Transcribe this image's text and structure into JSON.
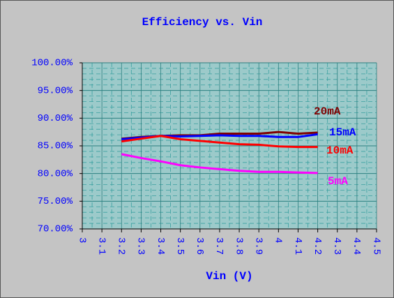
{
  "chart_data": {
    "type": "line",
    "title": "Efficiency vs. Vin",
    "x_label": "Vin (V)",
    "x": [
      3.2,
      3.3,
      3.4,
      3.5,
      3.6,
      3.7,
      3.8,
      3.9,
      4.0,
      4.1,
      4.2
    ],
    "series": [
      {
        "name": "20mA",
        "color": "#800000",
        "values": [
          86.3,
          86.6,
          86.8,
          86.9,
          86.9,
          87.2,
          87.2,
          87.2,
          87.5,
          87.2,
          87.4
        ]
      },
      {
        "name": "15mA",
        "color": "#0000ff",
        "values": [
          86.2,
          86.5,
          86.8,
          86.7,
          86.8,
          86.9,
          86.8,
          86.8,
          86.6,
          86.6,
          87.1
        ]
      },
      {
        "name": "10mA",
        "color": "#ff0000",
        "values": [
          85.8,
          86.3,
          86.8,
          86.2,
          85.9,
          85.6,
          85.3,
          85.2,
          84.9,
          84.8,
          84.8
        ]
      },
      {
        "name": "5mA",
        "color": "#ff00ff",
        "values": [
          83.5,
          82.8,
          82.2,
          81.5,
          81.1,
          80.8,
          80.5,
          80.3,
          80.3,
          80.2,
          80.1
        ]
      }
    ],
    "xlim": [
      3,
      4.5
    ],
    "xticks": [
      3,
      3.1,
      3.2,
      3.3,
      3.4,
      3.5,
      3.6,
      3.7,
      3.8,
      3.9,
      4,
      4.1,
      4.2,
      4.3,
      4.4,
      4.5
    ],
    "ylim": [
      70,
      100
    ],
    "yticks": [
      {
        "value": 70,
        "label": "70.00%"
      },
      {
        "value": 75,
        "label": "75.00%"
      },
      {
        "value": 80,
        "label": "80.00%"
      },
      {
        "value": 85,
        "label": "85.00%"
      },
      {
        "value": 90,
        "label": "90.00%"
      },
      {
        "value": 95,
        "label": "95.00%"
      },
      {
        "value": 100,
        "label": "100.00%"
      }
    ],
    "grid": true
  }
}
